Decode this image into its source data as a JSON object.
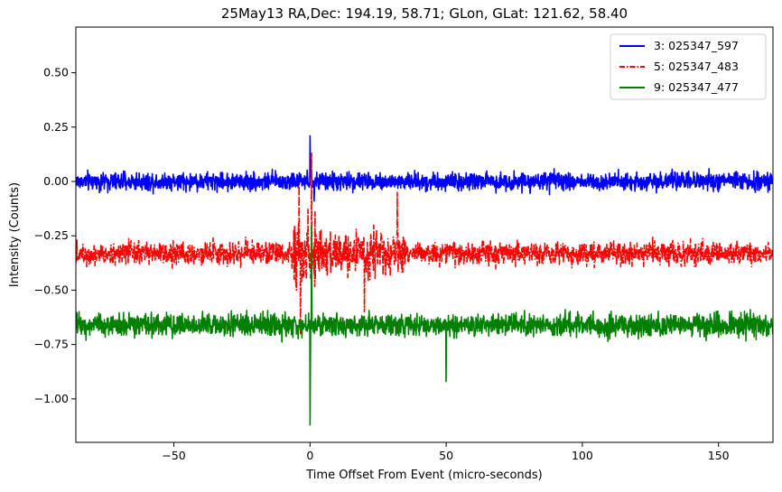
{
  "chart_data": {
    "type": "line",
    "title": "25May13 RA,Dec:  194.19,  58.71; GLon, GLat:  121.62,  58.40",
    "xlabel": "Time Offset From Event (micro-seconds)",
    "ylabel": "Intensity (Counts)",
    "xlim": [
      -86,
      170
    ],
    "ylim": [
      -1.2,
      0.71
    ],
    "x_ticks": [
      -50,
      0,
      50,
      100,
      150
    ],
    "x_tick_labels": [
      "−50",
      "0",
      "50",
      "100",
      "150"
    ],
    "y_ticks": [
      0.5,
      0.25,
      0.0,
      -0.25,
      -0.5,
      -0.75,
      -1.0
    ],
    "y_tick_labels": [
      "0.50",
      "0.25",
      "0.00",
      "−0.25",
      "−0.50",
      "−0.75",
      "−1.00"
    ],
    "legend_position": "top-right",
    "series": [
      {
        "name": "3: 025347_597",
        "color": "#0000ff",
        "style": "solid",
        "baseline": 0.0,
        "noise_amplitude": 0.04,
        "features": [
          {
            "x": 0.0,
            "y": 0.21
          },
          {
            "x": 1.5,
            "y": -0.09
          }
        ]
      },
      {
        "name": "5: 025347_483",
        "color": "#ff0000",
        "style": "dashdot",
        "baseline": -0.33,
        "noise_amplitude": 0.05,
        "features": [
          {
            "x": -4.0,
            "y": -0.02
          },
          {
            "x": 0.5,
            "y": 0.13
          },
          {
            "x": -3.5,
            "y": -0.7
          },
          {
            "x": 32.0,
            "y": -0.05
          },
          {
            "x": 20.0,
            "y": -0.6
          }
        ]
      },
      {
        "name": "9: 025347_477",
        "color": "#008000",
        "style": "solid",
        "baseline": -0.66,
        "noise_amplitude": 0.05,
        "features": [
          {
            "x": 0.0,
            "y": -1.12
          },
          {
            "x": 0.5,
            "y": -0.2
          },
          {
            "x": 50.0,
            "y": -0.92
          }
        ]
      }
    ]
  }
}
